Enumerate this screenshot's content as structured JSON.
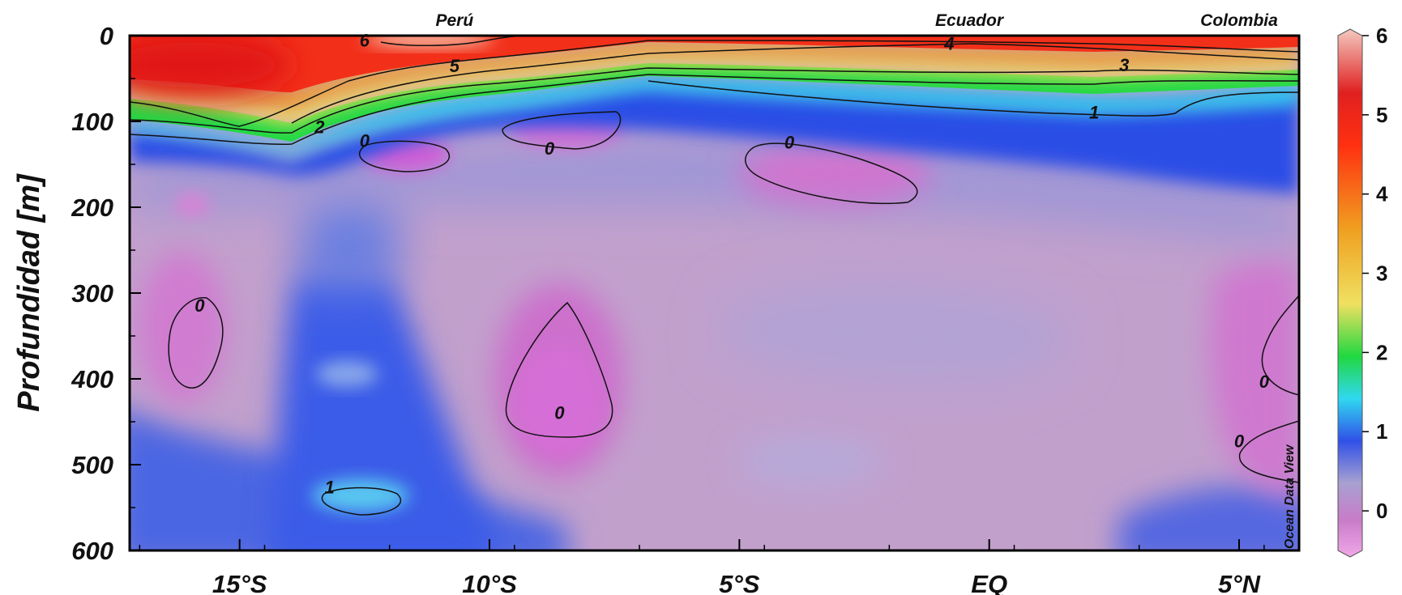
{
  "chart_data": {
    "type": "heatmap",
    "title": "",
    "xlabel": "",
    "ylabel": "Profundidad [m]",
    "x_tick_labels": [
      "15°S",
      "10°S",
      "5°S",
      "EQ",
      "5°N"
    ],
    "x_ticks": [
      -15,
      -10,
      -5,
      0,
      5
    ],
    "xlim": [
      -17.2,
      6.2
    ],
    "y_tick_labels": [
      "0",
      "100",
      "200",
      "300",
      "400",
      "500",
      "600"
    ],
    "y_ticks": [
      0,
      100,
      200,
      300,
      400,
      500,
      600
    ],
    "ylim": [
      600,
      0
    ],
    "top_labels": [
      {
        "text": "Perú",
        "x": -10.7
      },
      {
        "text": "Ecuador",
        "x": -0.4
      },
      {
        "text": "Colombia",
        "x": 5.0
      }
    ],
    "colorbar": {
      "range": [
        -0.5,
        6
      ],
      "ticks": [
        0,
        1,
        2,
        3,
        4,
        5,
        6
      ],
      "tick_labels": [
        "0",
        "1",
        "2",
        "3",
        "4",
        "5",
        "6"
      ],
      "colors": [
        "#f0a8e8",
        "#c87cc8",
        "#a8a0d0",
        "#3050e8",
        "#30d8f0",
        "#20d840",
        "#f0e060",
        "#f0a020",
        "#ff3010",
        "#e02020",
        "#f4c8c0"
      ]
    },
    "contour_labels": [
      {
        "text": "6",
        "x": -12.5,
        "y": 5
      },
      {
        "text": "5",
        "x": -10.7,
        "y": 35
      },
      {
        "text": "2",
        "x": -13.4,
        "y": 106
      },
      {
        "text": "0",
        "x": -12.5,
        "y": 122
      },
      {
        "text": "0",
        "x": -8.8,
        "y": 131
      },
      {
        "text": "0",
        "x": -4.0,
        "y": 124
      },
      {
        "text": "4",
        "x": -0.8,
        "y": 9
      },
      {
        "text": "3",
        "x": 2.7,
        "y": 34
      },
      {
        "text": "1",
        "x": 2.1,
        "y": 89
      },
      {
        "text": "0",
        "x": -15.8,
        "y": 314
      },
      {
        "text": "0",
        "x": -8.6,
        "y": 439
      },
      {
        "text": "1",
        "x": -13.2,
        "y": 526
      },
      {
        "text": "0",
        "x": 5.5,
        "y": 403
      },
      {
        "text": "0",
        "x": 5.0,
        "y": 472
      }
    ],
    "watermark": "Ocean Data View"
  }
}
